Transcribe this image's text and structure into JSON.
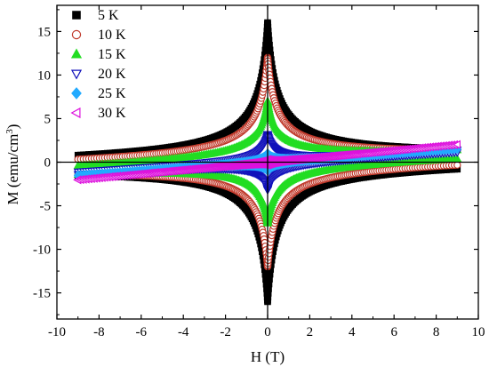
{
  "chart_data": {
    "type": "scatter",
    "title": "",
    "xlabel": "H (T)",
    "ylabel_main": "M (emu/cm",
    "ylabel_sup": "3",
    "ylabel_close": ")",
    "xlim": [
      -10,
      10
    ],
    "ylim": [
      -18,
      18
    ],
    "xticks": [
      -10,
      -8,
      -6,
      -4,
      -2,
      0,
      2,
      4,
      6,
      8,
      10
    ],
    "yticks": [
      -15,
      -10,
      -5,
      0,
      5,
      10,
      15
    ],
    "grid": false,
    "legend_position": "top-left",
    "series": [
      {
        "name": "5 K",
        "marker": "square",
        "color": "#000000",
        "fill": "#000000",
        "params": {
          "m0": 16.0,
          "eps": 0.35,
          "p": 0.8,
          "a": 0.04,
          "b": 0.3
        }
      },
      {
        "name": "10 K",
        "marker": "circle",
        "color": "#c0392b",
        "fill": "#ffffff",
        "params": {
          "m0": 12.0,
          "eps": 0.35,
          "p": 0.8,
          "a": 0.06,
          "b": 0.35
        }
      },
      {
        "name": "15 K",
        "marker": "triangle-up",
        "color": "#22dd22",
        "fill": "#22dd22",
        "params": {
          "m0": 7.0,
          "eps": 0.35,
          "p": 0.8,
          "a": 0.1,
          "b": 0.4
        }
      },
      {
        "name": "20 K",
        "marker": "triangle-down",
        "color": "#1111bb",
        "fill": "#ffffff",
        "params": {
          "m0": 3.2,
          "eps": 0.3,
          "p": 0.9,
          "a": 0.14,
          "b": 0.2
        }
      },
      {
        "name": "25 K",
        "marker": "diamond",
        "color": "#22aaff",
        "fill": "#22aaff",
        "params": {
          "m0": 1.0,
          "eps": 0.3,
          "p": 1.0,
          "a": 0.17,
          "b": 0.1
        }
      },
      {
        "name": "30 K",
        "marker": "triangle-left",
        "color": "#dd11dd",
        "fill": "#ffffff",
        "params": {
          "m0": 0.3,
          "eps": 0.3,
          "p": 1.0,
          "a": 0.225,
          "b": 0.05
        }
      }
    ]
  }
}
